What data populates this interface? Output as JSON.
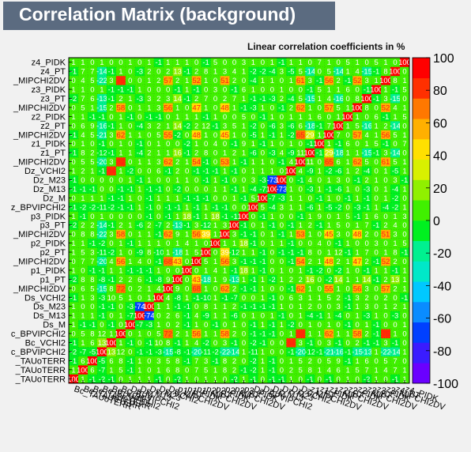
{
  "title": "Correlation Matrix (background)",
  "chart_data": {
    "type": "heatmap",
    "title": "Correlation Matrix (background)",
    "subtitle": "Linear correlation coefficients in %",
    "variables": [
      "Bc_TAUoTERR",
      "Bc_TAUoTERR",
      "Bc_TAUoTERR",
      "Bc_BPVIPCHI2",
      "Bc_VCHI2",
      "Bc_BPVIPCHI2",
      "Ds_M",
      "Ds_M13",
      "Ds_M23",
      "Ds_VCHI2",
      "Ds_MIPCHI2DV",
      "p1_PT",
      "p1_PIDK",
      "p1_MIPCHI2DV",
      "p2_PT",
      "p2_PIDK",
      "p2_MIPCHI2DV",
      "p3_PT",
      "p3_PIDK",
      "Dz_BPVIPCHI2",
      "Dz_M",
      "Dz_M13",
      "Dz_M23",
      "Dz_VCHI2",
      "Dz_MIPCHI2DV",
      "z1_PT",
      "z1_PIDK",
      "z1_MIPCHI2DV",
      "z2_PT",
      "z2_PIDK",
      "z2_MIPCHI2DV",
      "z3_PT",
      "z3_PIDK",
      "z3_MIPCHI2DV",
      "z4_PT",
      "z4_PIDK"
    ],
    "x_tick_labels": [
      "Bc_TAUoTERR",
      "Bc_TAUoTERR",
      "Bc_TAUoTERR",
      "Bc_BPVIPCHI2",
      "Bc_VCHI2",
      "Bc_BPVIPCHI2",
      "Ds_M",
      "Ds_M13",
      "Ds_M23",
      "Ds_VCHI2",
      "Ds_MIPCHI2DV",
      "p1_PT",
      "p1_PIDK",
      "p1_MIPCHI2DV",
      "p2_PT",
      "p2_PIDK",
      "p2_MIPCHI2DV",
      "p3_PT",
      "p3_PIDK",
      "Dz_BPVIPCHI2",
      "Dz_M",
      "Dz_M13",
      "Dz_M23",
      "Dz_VCHI2",
      "Dz_MIPCHI2DV",
      "z1_PT",
      "z1_PIDK",
      "z1_MIPCHI2DV",
      "z2_PT",
      "z2_PIDK",
      "z2_MIPCHI2DV",
      "z3_PT",
      "z3_PIDK",
      "z3_MIPCHI2DV",
      "z4_PT",
      "z4_PIDK"
    ],
    "y_tick_labels": [
      "_TAUoTERR",
      "_TAUoTERR",
      "_TAUoTERR",
      "c_BPVIPCHI2",
      "Bc_VCHI2",
      "c_BPVIPCHI2",
      "Ds_M",
      "Ds_M13",
      "Ds_M23",
      "Ds_VCHI2",
      "_MIPCHI2DV",
      "p1_PT",
      "p1_PIDK",
      "_MIPCHI2DV",
      "p2_PT",
      "p2_PIDK",
      "_MIPCHI2DV",
      "p3_PT",
      "p3_PIDK",
      "z_BPVIPCHI2",
      "Dz_M",
      "Dz_M13",
      "Dz_M23",
      "Dz_VCHI2",
      "_MIPCHI2DV",
      "z1_PT",
      "z1_PIDK",
      "_MIPCHI2DV",
      "z2_PT",
      "z2_PIDK",
      "_MIPCHI2DV",
      "z3_PT",
      "z3_PIDK",
      "_MIPCHI2DV",
      "z4_PT",
      "z4_PIDK"
    ],
    "colorbar": {
      "range": [
        -100,
        100
      ],
      "ticks": [
        -100,
        -80,
        -60,
        -40,
        -20,
        0,
        20,
        40,
        60,
        80,
        100
      ],
      "colors": [
        "#6a00ff",
        "#3a1cff",
        "#0040ff",
        "#0a8cff",
        "#00c8ff",
        "#00e8c8",
        "#00f090",
        "#00f020",
        "#40f000",
        "#90f000",
        "#d8f000",
        "#ffe000",
        "#ffb000",
        "#ff7800",
        "#ff3000",
        "#ff0000"
      ]
    },
    "values": [
      [
        100,
        1,
        -1,
        -2,
        -1,
        0,
        1,
        1,
        1,
        -1,
        0,
        -2,
        1,
        0,
        1,
        1,
        0,
        -2,
        1,
        -1,
        0,
        -1,
        -1,
        1,
        0,
        -1,
        0,
        -1,
        0,
        1,
        0,
        -2,
        1,
        0,
        -1,
        1
      ],
      [
        1,
        100,
        6,
        -7,
        1,
        5,
        -1,
        1,
        0,
        1,
        6,
        8,
        0,
        7,
        5,
        1,
        8,
        2,
        -1,
        -2,
        1,
        -1,
        0,
        2,
        5,
        8,
        1,
        4,
        6,
        1,
        5,
        7,
        1,
        4,
        7,
        1
      ],
      [
        -1,
        6,
        100,
        -5,
        6,
        8,
        -1,
        1,
        0,
        3,
        5,
        8,
        -1,
        7,
        3,
        -1,
        8,
        2,
        0,
        -2,
        1,
        -1,
        0,
        1,
        5,
        2,
        0,
        5,
        9,
        -1,
        1,
        6,
        0,
        5,
        7,
        0
      ],
      [
        -2,
        -7,
        -5,
        100,
        13,
        12,
        0,
        -1,
        -1,
        -3,
        -15,
        -8,
        -1,
        -20,
        -11,
        -2,
        -22,
        -14,
        1,
        -11,
        1,
        0,
        0,
        -1,
        -20,
        -12,
        -1,
        -21,
        -16,
        -1,
        -15,
        -13,
        1,
        -22,
        -14,
        1
      ],
      [
        -1,
        1,
        6,
        13,
        100,
        1,
        -1,
        0,
        -1,
        10,
        8,
        -1,
        1,
        4,
        -2,
        0,
        3,
        -1,
        0,
        -2,
        -1,
        0,
        0,
        84,
        3,
        -1,
        0,
        3,
        -1,
        0,
        2,
        -1,
        -1,
        3,
        -1,
        0
      ],
      [
        0,
        5,
        8,
        12,
        1,
        100,
        0,
        1,
        0,
        5,
        72,
        2,
        1,
        56,
        1,
        1,
        58,
        2,
        0,
        -1,
        -1,
        -1,
        0,
        1,
        82,
        1,
        1,
        62,
        1,
        1,
        58,
        2,
        -1,
        75,
        1,
        0
      ],
      [
        1,
        -1,
        -1,
        0,
        -1,
        0,
        100,
        -7,
        -3,
        1,
        0,
        2,
        -1,
        1,
        0,
        -1,
        0,
        1,
        0,
        -1,
        1,
        -1,
        1,
        -2,
        0,
        1,
        0,
        1,
        0,
        -1,
        0,
        1,
        -1,
        0,
        0,
        1
      ],
      [
        1,
        1,
        1,
        -1,
        0,
        1,
        -7,
        100,
        -74,
        0,
        2,
        6,
        -1,
        4,
        -9,
        1,
        1,
        -6,
        0,
        1,
        0,
        1,
        -1,
        0,
        1,
        -4,
        -1,
        1,
        -4,
        0,
        1,
        -3,
        1,
        0,
        -3,
        0
      ],
      [
        1,
        0,
        0,
        -1,
        -1,
        0,
        -3,
        -74,
        100,
        1,
        1,
        -1,
        -1,
        0,
        8,
        1,
        1,
        2,
        -1,
        -1,
        -1,
        -1,
        1,
        0,
        1,
        2,
        0,
        0,
        3,
        -1,
        1,
        3,
        0,
        1,
        2,
        1
      ],
      [
        -1,
        1,
        3,
        -3,
        10,
        5,
        1,
        0,
        1,
        100,
        4,
        -8,
        1,
        -1,
        -10,
        1,
        -1,
        -7,
        0,
        0,
        1,
        -1,
        0,
        6,
        3,
        1,
        1,
        5,
        2,
        -1,
        3,
        2,
        0,
        2,
        0,
        -1
      ],
      [
        0,
        6,
        5,
        -15,
        8,
        72,
        0,
        2,
        1,
        4,
        100,
        9,
        0,
        68,
        1,
        0,
        62,
        2,
        -1,
        -1,
        1,
        0,
        0,
        -1,
        62,
        1,
        0,
        55,
        1,
        0,
        56,
        3,
        0,
        57,
        2,
        1
      ],
      [
        -2,
        8,
        8,
        -8,
        -1,
        2,
        2,
        6,
        -1,
        -8,
        9,
        100,
        0,
        43,
        -18,
        1,
        9,
        -13,
        1,
        -1,
        1,
        -2,
        1,
        2,
        2,
        16,
        0,
        -2,
        14,
        1,
        1,
        14,
        -1,
        2,
        13,
        1
      ],
      [
        1,
        0,
        -1,
        -1,
        1,
        1,
        -1,
        -1,
        -1,
        1,
        0,
        0,
        100,
        0,
        1,
        4,
        1,
        -1,
        18,
        1,
        -1,
        0,
        1,
        0,
        1,
        -1,
        -2,
        0,
        -2,
        1,
        0,
        -1,
        1,
        1,
        -1,
        1
      ],
      [
        0,
        7,
        7,
        -20,
        4,
        56,
        1,
        4,
        0,
        -1,
        68,
        43,
        0,
        100,
        5,
        1,
        56,
        3,
        -1,
        -1,
        -1,
        0,
        0,
        -1,
        54,
        2,
        1,
        48,
        2,
        1,
        47,
        2,
        -1,
        52,
        2,
        0
      ],
      [
        1,
        5,
        3,
        -11,
        -2,
        1,
        0,
        -9,
        8,
        -10,
        1,
        -18,
        1,
        5,
        100,
        0,
        39,
        -12,
        1,
        1,
        -1,
        0,
        -1,
        -1,
        -1,
        8,
        0,
        1,
        12,
        -1,
        1,
        7,
        0,
        1,
        8,
        -1
      ],
      [
        1,
        1,
        -1,
        -2,
        0,
        1,
        -1,
        1,
        1,
        1,
        0,
        1,
        4,
        1,
        0,
        100,
        1,
        1,
        18,
        -1,
        0,
        1,
        1,
        -1,
        0,
        0,
        4,
        0,
        -1,
        1,
        0,
        0,
        3,
        0,
        1,
        5
      ],
      [
        0,
        8,
        8,
        -22,
        3,
        58,
        0,
        1,
        1,
        -1,
        62,
        9,
        1,
        56,
        39,
        1,
        100,
        3,
        -1,
        -1,
        0,
        1,
        -1,
        1,
        53,
        1,
        0,
        45,
        3,
        0,
        48,
        2,
        0,
        51,
        3,
        0
      ],
      [
        -2,
        2,
        2,
        -14,
        -1,
        2,
        1,
        -6,
        2,
        -7,
        2,
        -13,
        -1,
        3,
        -12,
        1,
        3,
        100,
        -1,
        0,
        1,
        -1,
        0,
        -1,
        1,
        2,
        -1,
        1,
        5,
        0,
        1,
        7,
        -1,
        2,
        4,
        0
      ],
      [
        1,
        -1,
        0,
        1,
        0,
        0,
        0,
        0,
        -1,
        0,
        -1,
        1,
        18,
        -1,
        1,
        18,
        -1,
        -1,
        100,
        0,
        -1,
        1,
        0,
        0,
        -1,
        1,
        9,
        0,
        1,
        5,
        -1,
        1,
        6,
        0,
        1,
        3
      ],
      [
        -1,
        -2,
        -2,
        -11,
        -2,
        -1,
        -1,
        1,
        -1,
        0,
        -1,
        -1,
        1,
        -1,
        1,
        -1,
        -1,
        0,
        0,
        100,
        5,
        -4,
        3,
        1,
        1,
        -6,
        1,
        -5,
        -2,
        0,
        -3,
        -1,
        1,
        -4,
        -2,
        1
      ],
      [
        0,
        1,
        1,
        1,
        -1,
        -1,
        1,
        0,
        -1,
        1,
        1,
        1,
        -1,
        -1,
        -1,
        0,
        0,
        1,
        -1,
        5,
        100,
        -7,
        -3,
        1,
        1,
        0,
        -1,
        1,
        0,
        -1,
        1,
        -1,
        0,
        1,
        -2,
        0
      ],
      [
        -1,
        -1,
        -1,
        0,
        0,
        -1,
        -1,
        1,
        -1,
        -1,
        0,
        -2,
        0,
        0,
        0,
        1,
        1,
        -1,
        1,
        -4,
        -7,
        100,
        -73,
        1,
        0,
        -3,
        1,
        -1,
        -6,
        1,
        0,
        -3,
        0,
        1,
        -4,
        1
      ],
      [
        -1,
        0,
        0,
        0,
        0,
        0,
        1,
        -1,
        1,
        0,
        0,
        1,
        1,
        0,
        -1,
        1,
        -1,
        0,
        0,
        3,
        -3,
        -73,
        100,
        0,
        -1,
        4,
        0,
        1,
        3,
        0,
        -1,
        2,
        1,
        0,
        3,
        -1
      ],
      [
        1,
        2,
        1,
        -1,
        84,
        1,
        -2,
        0,
        0,
        6,
        -1,
        2,
        0,
        -1,
        -1,
        -1,
        1,
        -1,
        0,
        1,
        1,
        1,
        0,
        100,
        4,
        -9,
        1,
        -2,
        -6,
        1,
        2,
        -4,
        0,
        1,
        -5,
        1
      ],
      [
        0,
        5,
        5,
        -20,
        3,
        82,
        0,
        1,
        1,
        3,
        62,
        2,
        1,
        54,
        -1,
        0,
        53,
        1,
        -1,
        1,
        1,
        0,
        -1,
        4,
        100,
        11,
        0,
        65,
        6,
        1,
        62,
        5,
        0,
        61,
        5,
        1
      ],
      [
        -1,
        8,
        2,
        -12,
        -1,
        1,
        1,
        -4,
        2,
        1,
        1,
        16,
        -1,
        2,
        8,
        0,
        1,
        2,
        1,
        -6,
        0,
        -3,
        4,
        -9,
        11,
        100,
        -1,
        29,
        -18,
        1,
        1,
        -15,
        -1,
        3,
        -14,
        0
      ],
      [
        0,
        1,
        0,
        -1,
        0,
        1,
        0,
        -1,
        0,
        1,
        0,
        0,
        -2,
        1,
        0,
        4,
        0,
        -1,
        9,
        1,
        -1,
        1,
        0,
        1,
        0,
        -1,
        100,
        1,
        -1,
        6,
        0,
        1,
        5,
        -1,
        0,
        7
      ],
      [
        -1,
        4,
        5,
        -21,
        3,
        62,
        1,
        1,
        0,
        5,
        55,
        -2,
        0,
        48,
        1,
        0,
        45,
        1,
        0,
        -5,
        1,
        -1,
        1,
        -2,
        65,
        29,
        1,
        100,
        7,
        0,
        57,
        4,
        1,
        56,
        5,
        1
      ],
      [
        0,
        6,
        9,
        -16,
        -1,
        1,
        0,
        -4,
        3,
        2,
        1,
        14,
        -2,
        2,
        12,
        -1,
        3,
        5,
        1,
        -2,
        0,
        -6,
        3,
        -6,
        6,
        -18,
        -1,
        7,
        100,
        1,
        5,
        -16,
        1,
        2,
        -14,
        0
      ],
      [
        1,
        1,
        -1,
        -1,
        0,
        1,
        -1,
        0,
        -1,
        -1,
        0,
        1,
        1,
        1,
        -1,
        1,
        0,
        0,
        5,
        0,
        -1,
        1,
        0,
        1,
        1,
        1,
        6,
        0,
        1,
        100,
        1,
        0,
        6,
        -1,
        1,
        5
      ],
      [
        0,
        5,
        1,
        -15,
        2,
        58,
        0,
        1,
        1,
        3,
        56,
        1,
        0,
        47,
        1,
        0,
        48,
        1,
        -1,
        -3,
        1,
        0,
        -1,
        2,
        62,
        1,
        0,
        57,
        5,
        1,
        100,
        8,
        0,
        52,
        4,
        1
      ],
      [
        -2,
        7,
        6,
        -13,
        -1,
        2,
        1,
        -3,
        3,
        2,
        3,
        14,
        -1,
        2,
        7,
        0,
        2,
        7,
        1,
        -1,
        -1,
        -3,
        2,
        -4,
        5,
        -15,
        1,
        4,
        -16,
        0,
        8,
        100,
        -1,
        3,
        -15,
        0
      ],
      [
        1,
        1,
        0,
        1,
        -1,
        -1,
        -1,
        1,
        0,
        0,
        0,
        -1,
        1,
        -1,
        0,
        3,
        0,
        -1,
        6,
        1,
        0,
        0,
        1,
        0,
        0,
        -1,
        5,
        1,
        1,
        6,
        0,
        -1,
        100,
        1,
        -1,
        5
      ],
      [
        0,
        4,
        5,
        -22,
        3,
        75,
        0,
        0,
        1,
        2,
        57,
        2,
        1,
        52,
        1,
        0,
        51,
        2,
        0,
        -4,
        1,
        1,
        0,
        1,
        61,
        3,
        -1,
        56,
        2,
        -1,
        52,
        3,
        1,
        100,
        8,
        1
      ],
      [
        -1,
        7,
        7,
        -14,
        -1,
        1,
        0,
        -3,
        2,
        0,
        2,
        13,
        -1,
        2,
        8,
        1,
        3,
        4,
        1,
        -2,
        -2,
        -4,
        3,
        -5,
        5,
        -14,
        0,
        5,
        -14,
        1,
        4,
        -15,
        -1,
        8,
        100,
        0
      ],
      [
        1,
        1,
        0,
        1,
        0,
        0,
        1,
        0,
        1,
        -1,
        1,
        1,
        1,
        0,
        -1,
        5,
        0,
        0,
        3,
        1,
        0,
        1,
        -1,
        1,
        1,
        0,
        7,
        1,
        0,
        5,
        1,
        0,
        5,
        1,
        0,
        100
      ]
    ]
  }
}
